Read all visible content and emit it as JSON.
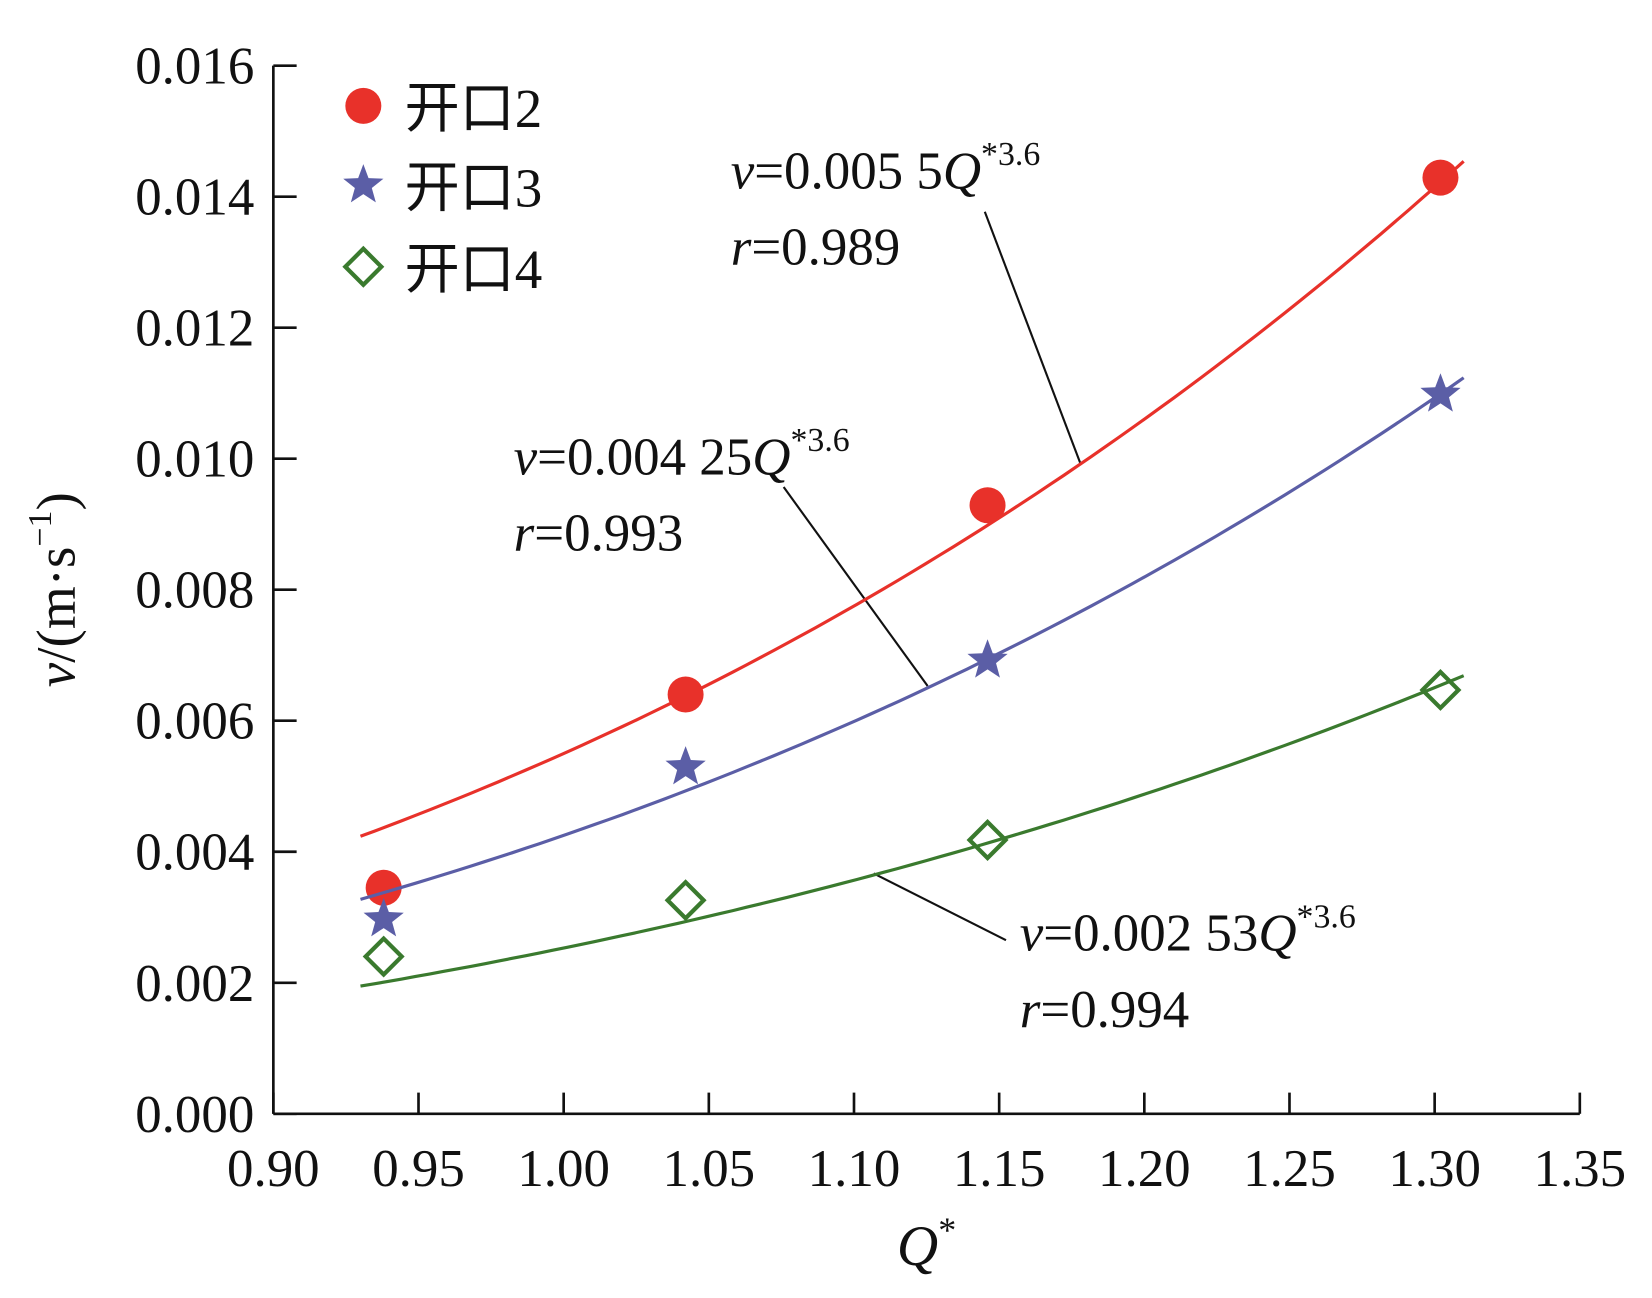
{
  "chart_data": {
    "type": "scatter",
    "xlabel": [
      "Q",
      "*"
    ],
    "ylabel": [
      "v",
      "/(m·s",
      "−1",
      ")"
    ],
    "xlim": [
      0.9,
      1.35
    ],
    "ylim": [
      0,
      0.016
    ],
    "xticks": [
      {
        "value": 0.9,
        "label": "0.90"
      },
      0.95,
      {
        "value": 1.0,
        "label": "1.00"
      },
      1.05,
      {
        "value": 1.1,
        "label": "1.10"
      },
      1.15,
      {
        "value": 1.2,
        "label": "1.20"
      },
      1.25,
      {
        "value": 1.3,
        "label": "1.30"
      },
      1.35
    ],
    "yticks": [
      {
        "value": 0,
        "label": "0.000"
      },
      0.002,
      0.004,
      0.006,
      0.008,
      {
        "value": 0.01,
        "label": "0.010"
      },
      0.012,
      0.014,
      0.016
    ],
    "legend": "upper left",
    "series": [
      {
        "name": "开口2",
        "marker": "circle",
        "color": "#e8312a",
        "x": [
          0.938,
          1.042,
          1.146,
          1.302
        ],
        "values": [
          0.00345,
          0.0064,
          0.00929,
          0.01429
        ],
        "fit": {
          "coefficient": 0.0055,
          "exponent": 3.6,
          "range": [
            0.93,
            1.31
          ]
        },
        "equation": [
          "v",
          "=0.005 5",
          "Q",
          "*3.6"
        ],
        "r": [
          "r",
          "=0.989"
        ]
      },
      {
        "name": "开口3",
        "marker": "star",
        "color": "#5b5ea6",
        "x": [
          0.938,
          1.042,
          1.146,
          1.302
        ],
        "values": [
          0.00297,
          0.00529,
          0.00692,
          0.01098
        ],
        "fit": {
          "coefficient": 0.00425,
          "exponent": 3.6,
          "range": [
            0.93,
            1.31
          ]
        },
        "equation": [
          "v",
          "=0.004 25",
          "Q",
          "*3.6"
        ],
        "r": [
          "r",
          "=0.993"
        ]
      },
      {
        "name": "开口4",
        "marker": "diamond",
        "color": "#3a7a2e",
        "x": [
          0.938,
          1.042,
          1.146,
          1.302
        ],
        "values": [
          0.0024,
          0.00326,
          0.00418,
          0.00647
        ],
        "fit": {
          "coefficient": 0.00253,
          "exponent": 3.6,
          "range": [
            0.93,
            1.31
          ]
        },
        "equation": [
          "v",
          "=0.002 53",
          "Q",
          "*3.6"
        ],
        "r": [
          "r",
          "=0.994"
        ]
      }
    ]
  }
}
